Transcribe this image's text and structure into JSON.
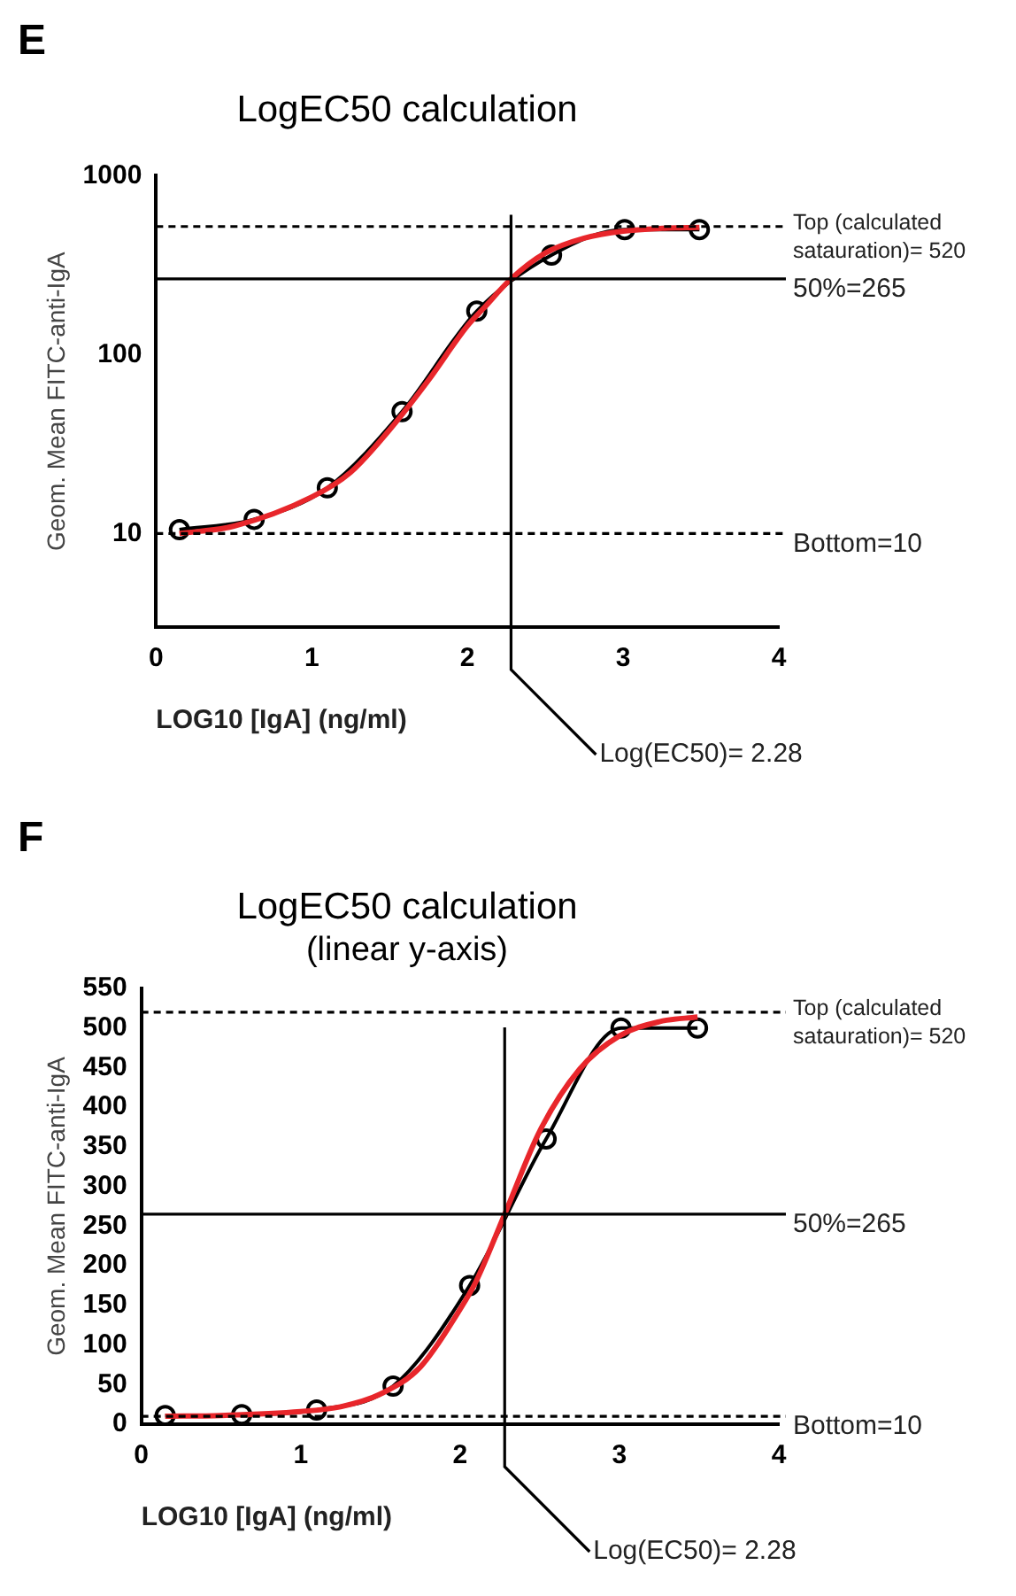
{
  "chart_data": [
    {
      "type": "line",
      "title": "LogEC50 calculation",
      "xlabel": "LOG10 [IgA] (ng/ml)",
      "ylabel": "Geom. Mean FITC-anti-IgA",
      "annotations": [
        "E"
      ],
      "log": "y",
      "grid": false,
      "legend": false,
      "xlim": [
        0,
        4
      ],
      "xticks": [
        0,
        1,
        2,
        3,
        4
      ],
      "ylim": [
        3,
        1000
      ],
      "yticks": [
        10,
        100,
        1000
      ],
      "series": [
        {
          "marker": "circle",
          "color": "#000000",
          "x": [
            0.15,
            0.63,
            1.1,
            1.58,
            2.06,
            2.54,
            3.01,
            3.49
          ],
          "values": [
            10.5,
            12,
            18,
            48,
            175,
            360,
            500,
            500
          ]
        },
        {
          "marker": "none",
          "color": "#e8262b",
          "x": [
            0.15,
            0.5,
            1.0,
            1.25,
            1.5,
            1.75,
            2.0,
            2.1,
            2.28,
            2.5,
            2.75,
            3.0,
            3.25,
            3.49
          ],
          "values": [
            10,
            11,
            16,
            22,
            38,
            72,
            145,
            180,
            265,
            370,
            448,
            490,
            508,
            514
          ]
        }
      ],
      "ref_lines": [
        {
          "axis": "y",
          "value": 520,
          "label": "Top (calculated satauration)= 520",
          "line_style": "dashed"
        },
        {
          "axis": "y",
          "value": 265,
          "label": "50%=265",
          "line_style": "solid"
        },
        {
          "axis": "y",
          "value": 10,
          "label": "Bottom=10",
          "line_style": "dashed"
        },
        {
          "axis": "x",
          "value": 2.28,
          "label": "Log(EC50)= 2.28",
          "line_style": "solid"
        }
      ]
    },
    {
      "type": "line",
      "title": "LogEC50 calculation",
      "subtitle": "(linear y-axis)",
      "xlabel": "LOG10 [IgA] (ng/ml)",
      "ylabel": "Geom. Mean FITC-anti-IgA",
      "annotations": [
        "F"
      ],
      "grid": false,
      "legend": false,
      "xlim": [
        0,
        4
      ],
      "xticks": [
        0,
        1,
        2,
        3,
        4
      ],
      "ylim": [
        0,
        550
      ],
      "yticks": [
        0,
        50,
        100,
        150,
        200,
        250,
        300,
        350,
        400,
        450,
        500,
        550
      ],
      "series": [
        {
          "marker": "circle",
          "color": "#000000",
          "x": [
            0.15,
            0.63,
            1.1,
            1.58,
            2.06,
            2.54,
            3.01,
            3.49
          ],
          "values": [
            11,
            12,
            18,
            48,
            175,
            360,
            500,
            500
          ]
        },
        {
          "marker": "none",
          "color": "#e8262b",
          "x": [
            0.15,
            0.5,
            1.0,
            1.25,
            1.5,
            1.75,
            2.0,
            2.1,
            2.28,
            2.5,
            2.75,
            3.0,
            3.25,
            3.49
          ],
          "values": [
            10,
            11,
            16,
            22,
            38,
            72,
            145,
            180,
            265,
            370,
            448,
            490,
            508,
            514
          ]
        }
      ],
      "ref_lines": [
        {
          "axis": "y",
          "value": 520,
          "label": "Top (calculated satauration)= 520",
          "line_style": "dashed"
        },
        {
          "axis": "y",
          "value": 265,
          "label": "50%=265",
          "line_style": "solid"
        },
        {
          "axis": "y",
          "value": 10,
          "label": "Bottom=10",
          "line_style": "dashed"
        },
        {
          "axis": "x",
          "value": 2.28,
          "label": "Log(EC50)= 2.28",
          "line_style": "solid"
        }
      ]
    }
  ]
}
